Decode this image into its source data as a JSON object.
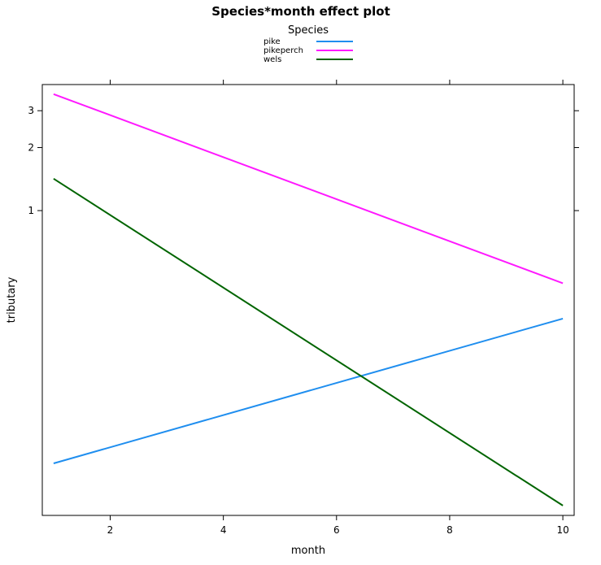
{
  "chart_data": {
    "type": "line",
    "title": "Species*month effect plot",
    "xlabel": "month",
    "ylabel": "tributary",
    "legend": {
      "title": "Species",
      "placement": "top-center"
    },
    "x_ticks": [
      2,
      4,
      6,
      8,
      10
    ],
    "y_ticks": [
      1,
      2,
      3
    ],
    "x_range": [
      0.8,
      10.2
    ],
    "y_scale": "log",
    "y_range": [
      0.035,
      4.0
    ],
    "grid": false,
    "series": [
      {
        "name": "pike",
        "color": "#1f8eef",
        "x": [
          1,
          10
        ],
        "y": [
          0.062,
          0.305
        ]
      },
      {
        "name": "pikeperch",
        "color": "#ff19ff",
        "x": [
          1,
          10
        ],
        "y": [
          3.6,
          0.45
        ]
      },
      {
        "name": "wels",
        "color": "#006400",
        "x": [
          1,
          10
        ],
        "y": [
          1.42,
          0.039
        ]
      }
    ]
  }
}
